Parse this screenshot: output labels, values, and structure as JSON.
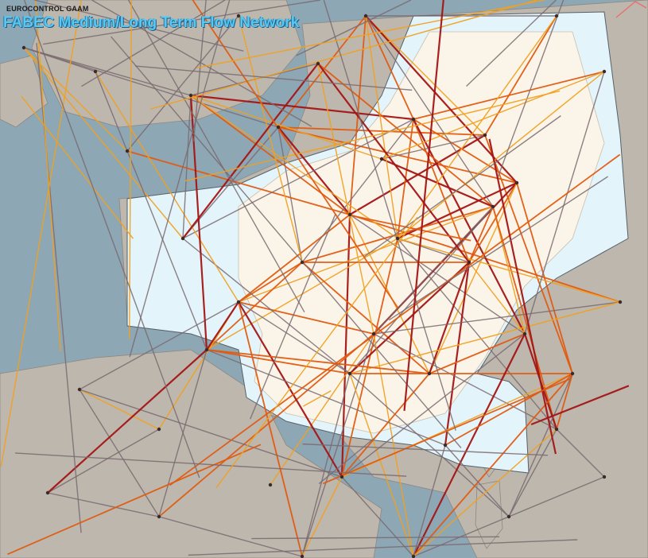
{
  "header": {
    "org_label": "EUROCONTROL GAAM",
    "title": "FABEC Medium/Long Term Flow Network"
  },
  "colors": {
    "sea": "#8ea7b5",
    "land_outside": "#bdb7ad",
    "fabec_airspace": "#e3f4fa",
    "fabec_land": "#fbf4e8",
    "route_low": "#7a6a70",
    "route_mid": "#f0a020",
    "route_high": "#e05a10",
    "route_peak": "#a31515",
    "corner_accent": "#e87070"
  },
  "map_layers": [
    "sea",
    "land",
    "fabec-airspace",
    "route-network",
    "route-nodes"
  ],
  "route_levels": [
    "low",
    "mid",
    "high",
    "peak"
  ]
}
